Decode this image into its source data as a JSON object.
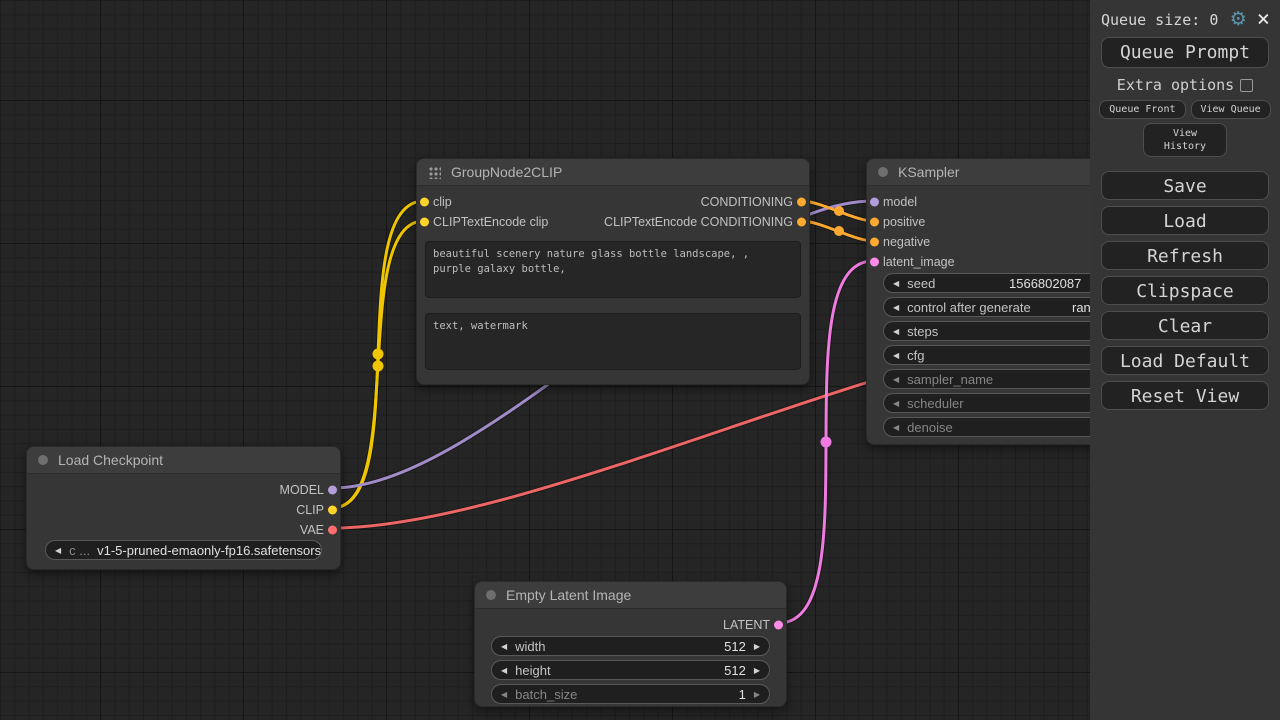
{
  "menu": {
    "queue_size_label": "Queue size: 0",
    "settings_icon": "⚙",
    "close_icon": "×",
    "queue_prompt": "Queue Prompt",
    "extra_options": "Extra options",
    "queue_front": "Queue Front",
    "view_queue": "View Queue",
    "view_history": "View History",
    "buttons": [
      "Save",
      "Load",
      "Refresh",
      "Clipspace",
      "Clear",
      "Load Default",
      "Reset View"
    ]
  },
  "nodes": {
    "group": {
      "title": "GroupNode2CLIP",
      "inputs": [
        "clip",
        "CLIPTextEncode clip"
      ],
      "outputs": [
        "CONDITIONING",
        "CLIPTextEncode CONDITIONING"
      ],
      "positive_text": "beautiful scenery nature glass bottle landscape, , purple galaxy bottle,",
      "negative_text": "text, watermark"
    },
    "ksampler": {
      "title": "KSampler",
      "inputs": [
        "model",
        "positive",
        "negative",
        "latent_image"
      ],
      "widgets": [
        {
          "label": "seed",
          "value": "1566802087"
        },
        {
          "label": "control after generate",
          "value": "randomize"
        },
        {
          "label": "steps",
          "value": ""
        },
        {
          "label": "cfg",
          "value": ""
        },
        {
          "label": "sampler_name",
          "value": ""
        },
        {
          "label": "scheduler",
          "value": ""
        },
        {
          "label": "denoise",
          "value": ""
        }
      ]
    },
    "checkpoint": {
      "title": "Load Checkpoint",
      "outputs": [
        "MODEL",
        "CLIP",
        "VAE"
      ],
      "widget_label": "c ...",
      "widget_value": "v1-5-pruned-emaonly-fp16.safetensors"
    },
    "latent": {
      "title": "Empty Latent Image",
      "output": "LATENT",
      "widgets": [
        {
          "label": "width",
          "value": "512"
        },
        {
          "label": "height",
          "value": "512"
        },
        {
          "label": "batch_size",
          "value": "1"
        }
      ]
    }
  },
  "colors": {
    "clip": "#EFC500",
    "clip_dot": "#FFD42A",
    "model": "#A08CC9",
    "model_dot": "#B39DDB",
    "conditioning": "#FFA931",
    "conditioning_dot": "#FFA931",
    "latent": "#EF7BE0",
    "latent_dot": "#FF8BE8",
    "vae": "#EC6666",
    "vae_dot": "#FF6E6E"
  },
  "arrows": {
    "left": "◀",
    "right": "▶"
  }
}
